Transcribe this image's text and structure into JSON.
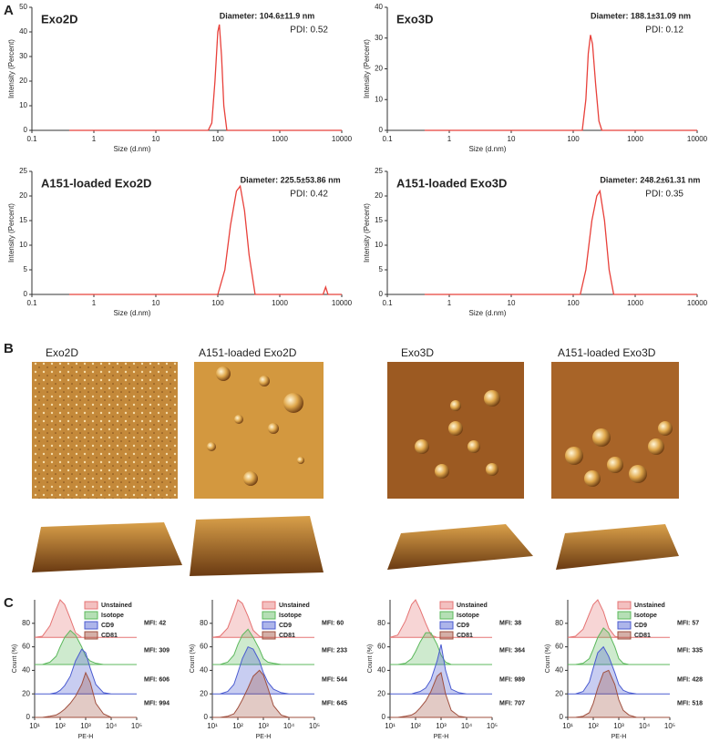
{
  "figure": {
    "panel_labels": [
      "A",
      "B",
      "C"
    ],
    "afm_titles": [
      "Exo2D",
      "A151-loaded Exo2D",
      "Exo3D",
      "A151-loaded Exo3D"
    ]
  },
  "chart_data": [
    {
      "type": "line",
      "title": "Exo2D",
      "annotations": [
        "Diameter: 104.6±11.9 nm",
        "PDI: 0.52"
      ],
      "xlabel": "Size (d.nm)",
      "ylabel": "Intensity (Percent)",
      "xlog": true,
      "xlim": [
        0.1,
        10000
      ],
      "xticks": [
        0.1,
        1,
        10,
        100,
        1000,
        10000
      ],
      "ylim": [
        0,
        50
      ],
      "yticks": [
        0,
        10,
        20,
        30,
        40,
        50
      ],
      "x": [
        0.4,
        70,
        80,
        90,
        100,
        106,
        115,
        125,
        140,
        10000
      ],
      "series": [
        {
          "color": "#e8403a",
          "values": [
            0,
            0,
            3,
            20,
            40,
            43,
            30,
            10,
            0,
            0
          ]
        }
      ]
    },
    {
      "type": "line",
      "title": "Exo3D",
      "annotations": [
        "Diameter: 188.1±31.09 nm",
        "PDI: 0.12"
      ],
      "xlabel": "Size (d.nm)",
      "ylabel": "Intensity (Percent)",
      "xlog": true,
      "xlim": [
        0.1,
        10000
      ],
      "xticks": [
        0.1,
        1,
        10,
        100,
        1000,
        10000
      ],
      "ylim": [
        0,
        40
      ],
      "yticks": [
        0,
        10,
        20,
        30,
        40
      ],
      "x": [
        0.4,
        140,
        160,
        175,
        190,
        205,
        230,
        260,
        290,
        10000
      ],
      "series": [
        {
          "color": "#e8403a",
          "values": [
            0,
            0,
            10,
            25,
            31,
            28,
            15,
            3,
            0,
            0
          ]
        }
      ]
    },
    {
      "type": "line",
      "title": "A151-loaded Exo2D",
      "annotations": [
        "Diameter: 225.5±53.86 nm",
        "PDI: 0.42"
      ],
      "xlabel": "Size (d.nm)",
      "ylabel": "Intensity (Percent)",
      "xlog": true,
      "xlim": [
        0.1,
        10000
      ],
      "xticks": [
        0.1,
        1,
        10,
        100,
        1000,
        10000
      ],
      "ylim": [
        0,
        25
      ],
      "yticks": [
        0,
        5,
        10,
        15,
        20,
        25
      ],
      "x": [
        0.4,
        100,
        130,
        160,
        200,
        230,
        270,
        320,
        400,
        5000,
        5500,
        6000,
        10000
      ],
      "series": [
        {
          "color": "#e8403a",
          "values": [
            0,
            0,
            5,
            14,
            21,
            22,
            17,
            8,
            0,
            0,
            1.5,
            0,
            0
          ]
        }
      ]
    },
    {
      "type": "line",
      "title": "A151-loaded Exo3D",
      "annotations": [
        "Diameter: 248.2±61.31 nm",
        "PDI: 0.35"
      ],
      "xlabel": "Size (d.nm)",
      "ylabel": "Intensity (Percent)",
      "xlog": true,
      "xlim": [
        0.1,
        10000
      ],
      "xticks": [
        0.1,
        1,
        10,
        100,
        1000,
        10000
      ],
      "ylim": [
        0,
        25
      ],
      "yticks": [
        0,
        5,
        10,
        15,
        20,
        25
      ],
      "x": [
        0.4,
        130,
        160,
        200,
        240,
        270,
        320,
        380,
        450,
        10000
      ],
      "series": [
        {
          "color": "#e8403a",
          "values": [
            0,
            0,
            5,
            15,
            20,
            21,
            15,
            5,
            0,
            0
          ]
        }
      ]
    },
    {
      "type": "area",
      "xlabel": "PE-H",
      "ylabel": "Count (%)",
      "xlog": true,
      "annotations": [
        "MFI: 42",
        "MFI: 309",
        "MFI: 606",
        "MFI: 994"
      ],
      "xlim": [
        10,
        100000
      ],
      "xticks": [
        {
          "value": 10,
          "label": "10¹"
        },
        {
          "value": 100,
          "label": "10²"
        },
        {
          "value": 1000,
          "label": "10³"
        },
        {
          "value": 10000,
          "label": "10⁴"
        },
        {
          "value": 100000,
          "label": "10⁵"
        }
      ],
      "ylim": [
        0,
        100
      ],
      "yticks": [
        0,
        20,
        40,
        60,
        80
      ],
      "x": [
        10,
        20,
        40,
        70,
        100,
        150,
        250,
        400,
        700,
        1000,
        1500,
        2500,
        5000,
        10000,
        100000
      ],
      "series": [
        {
          "name": "Unstained",
          "color": "#e57373",
          "values": [
            68,
            69,
            78,
            92,
            100,
            96,
            84,
            72,
            68,
            68,
            68,
            68,
            68,
            68,
            68
          ]
        },
        {
          "name": "Isotope",
          "color": "#5cb85c",
          "values": [
            45,
            45,
            47,
            52,
            60,
            68,
            74,
            70,
            60,
            52,
            48,
            46,
            45,
            45,
            45
          ]
        },
        {
          "name": "CD9",
          "color": "#4a5bd0",
          "values": [
            20,
            20,
            20,
            21,
            23,
            27,
            35,
            48,
            58,
            55,
            42,
            28,
            21,
            20,
            20
          ]
        },
        {
          "name": "CD81",
          "color": "#a0503f",
          "values": [
            0,
            0,
            1,
            2,
            4,
            7,
            12,
            18,
            28,
            38,
            30,
            12,
            3,
            0,
            0
          ]
        }
      ]
    },
    {
      "type": "area",
      "xlabel": "PE-H",
      "ylabel": "Count (%)",
      "xlog": true,
      "annotations": [
        "MFI: 60",
        "MFI: 233",
        "MFI: 544",
        "MFI: 645"
      ],
      "xlim": [
        10,
        100000
      ],
      "xticks": [
        {
          "value": 10,
          "label": "10¹"
        },
        {
          "value": 100,
          "label": "10²"
        },
        {
          "value": 1000,
          "label": "10³"
        },
        {
          "value": 10000,
          "label": "10⁴"
        },
        {
          "value": 100000,
          "label": "10⁵"
        }
      ],
      "ylim": [
        0,
        100
      ],
      "yticks": [
        0,
        20,
        40,
        60,
        80
      ],
      "x": [
        10,
        20,
        40,
        70,
        100,
        150,
        250,
        400,
        700,
        1000,
        1500,
        2500,
        5000,
        10000,
        100000
      ],
      "series": [
        {
          "name": "Unstained",
          "color": "#e57373",
          "values": [
            68,
            69,
            76,
            90,
            100,
            97,
            86,
            74,
            69,
            68,
            68,
            68,
            68,
            68,
            68
          ]
        },
        {
          "name": "Isotope",
          "color": "#5cb85c",
          "values": [
            45,
            45,
            47,
            53,
            62,
            70,
            75,
            68,
            58,
            50,
            47,
            46,
            45,
            45,
            45
          ]
        },
        {
          "name": "CD9",
          "color": "#4a5bd0",
          "values": [
            20,
            20,
            22,
            28,
            38,
            50,
            60,
            58,
            48,
            38,
            30,
            24,
            21,
            20,
            20
          ]
        },
        {
          "name": "CD81",
          "color": "#a0503f",
          "values": [
            0,
            0,
            1,
            3,
            8,
            15,
            25,
            35,
            40,
            36,
            25,
            10,
            2,
            0,
            0
          ]
        }
      ]
    },
    {
      "type": "area",
      "xlabel": "PE-H",
      "ylabel": "Count (%)",
      "xlog": true,
      "annotations": [
        "MFI: 38",
        "MFI: 364",
        "MFI: 989",
        "MFI: 707"
      ],
      "xlim": [
        10,
        100000
      ],
      "xticks": [
        {
          "value": 10,
          "label": "10¹"
        },
        {
          "value": 100,
          "label": "10²"
        },
        {
          "value": 1000,
          "label": "10³"
        },
        {
          "value": 10000,
          "label": "10⁴"
        },
        {
          "value": 100000,
          "label": "10⁵"
        }
      ],
      "ylim": [
        0,
        100
      ],
      "yticks": [
        0,
        20,
        40,
        60,
        80
      ],
      "x": [
        10,
        20,
        40,
        70,
        100,
        150,
        250,
        400,
        700,
        1000,
        1500,
        2500,
        5000,
        10000,
        100000
      ],
      "series": [
        {
          "name": "Unstained",
          "color": "#e57373",
          "values": [
            68,
            70,
            82,
            96,
            100,
            92,
            80,
            70,
            68,
            68,
            68,
            68,
            68,
            68,
            68
          ]
        },
        {
          "name": "Isotope",
          "color": "#5cb85c",
          "values": [
            45,
            45,
            46,
            50,
            56,
            64,
            72,
            72,
            62,
            53,
            47,
            45,
            45,
            45,
            45
          ]
        },
        {
          "name": "CD9",
          "color": "#4a5bd0",
          "values": [
            20,
            20,
            20,
            20,
            21,
            22,
            25,
            32,
            48,
            62,
            40,
            24,
            21,
            20,
            20
          ]
        },
        {
          "name": "CD81",
          "color": "#a0503f",
          "values": [
            0,
            0,
            1,
            2,
            4,
            8,
            14,
            22,
            35,
            38,
            20,
            6,
            1,
            0,
            0
          ]
        }
      ]
    },
    {
      "type": "area",
      "xlabel": "PE-H",
      "ylabel": "Count (%)",
      "xlog": true,
      "annotations": [
        "MFI: 57",
        "MFI: 335",
        "MFI: 428",
        "MFI: 518"
      ],
      "xlim": [
        10,
        100000
      ],
      "xticks": [
        {
          "value": 10,
          "label": "10¹"
        },
        {
          "value": 100,
          "label": "10²"
        },
        {
          "value": 1000,
          "label": "10³"
        },
        {
          "value": 10000,
          "label": "10⁴"
        },
        {
          "value": 100000,
          "label": "10⁵"
        }
      ],
      "ylim": [
        0,
        100
      ],
      "yticks": [
        0,
        20,
        40,
        60,
        80
      ],
      "x": [
        10,
        20,
        40,
        70,
        100,
        150,
        250,
        400,
        700,
        1000,
        1500,
        2500,
        5000,
        10000,
        100000
      ],
      "series": [
        {
          "name": "Unstained",
          "color": "#e57373",
          "values": [
            68,
            69,
            75,
            88,
            96,
            100,
            90,
            76,
            69,
            68,
            68,
            68,
            68,
            68,
            68
          ]
        },
        {
          "name": "Isotope",
          "color": "#5cb85c",
          "values": [
            45,
            45,
            46,
            50,
            58,
            68,
            76,
            72,
            60,
            50,
            46,
            45,
            45,
            45,
            45
          ]
        },
        {
          "name": "CD9",
          "color": "#4a5bd0",
          "values": [
            20,
            20,
            22,
            30,
            42,
            55,
            60,
            52,
            38,
            28,
            23,
            21,
            20,
            20,
            20
          ]
        },
        {
          "name": "CD81",
          "color": "#a0503f",
          "values": [
            0,
            0,
            1,
            4,
            12,
            25,
            38,
            40,
            28,
            15,
            6,
            2,
            0,
            0,
            0
          ]
        }
      ]
    }
  ]
}
